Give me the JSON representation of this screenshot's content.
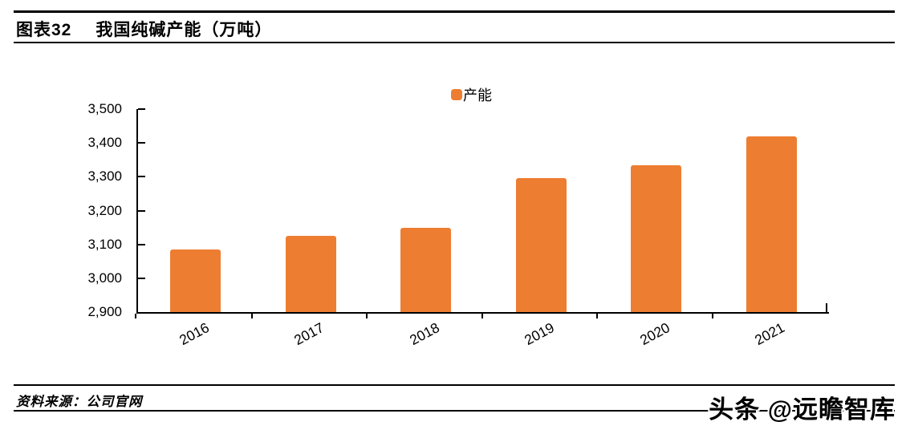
{
  "header": {
    "figure_label": "图表32",
    "title": "我国纯碱产能（万吨）"
  },
  "legend": {
    "items": [
      {
        "label": "产能",
        "color": "#ED7D31"
      }
    ]
  },
  "chart_data": {
    "type": "bar",
    "title": "我国纯碱产能（万吨）",
    "categories": [
      "2016",
      "2017",
      "2018",
      "2019",
      "2020",
      "2021"
    ],
    "series": [
      {
        "name": "产能",
        "values": [
          3085,
          3125,
          3148,
          3295,
          3333,
          3420
        ]
      }
    ],
    "xlabel": "",
    "ylabel": "",
    "ylim": [
      2900,
      3500
    ],
    "ytick_step": 100,
    "ytick_labels": [
      "2,900",
      "3,000",
      "3,100",
      "3,200",
      "3,300",
      "3,400",
      "3,500"
    ],
    "bar_color": "#ED7D31",
    "legend_position": "top-center",
    "grid": false
  },
  "footer": {
    "source": "资料来源：公司官网"
  },
  "watermark": {
    "text": "头条 @远瞻智库"
  }
}
